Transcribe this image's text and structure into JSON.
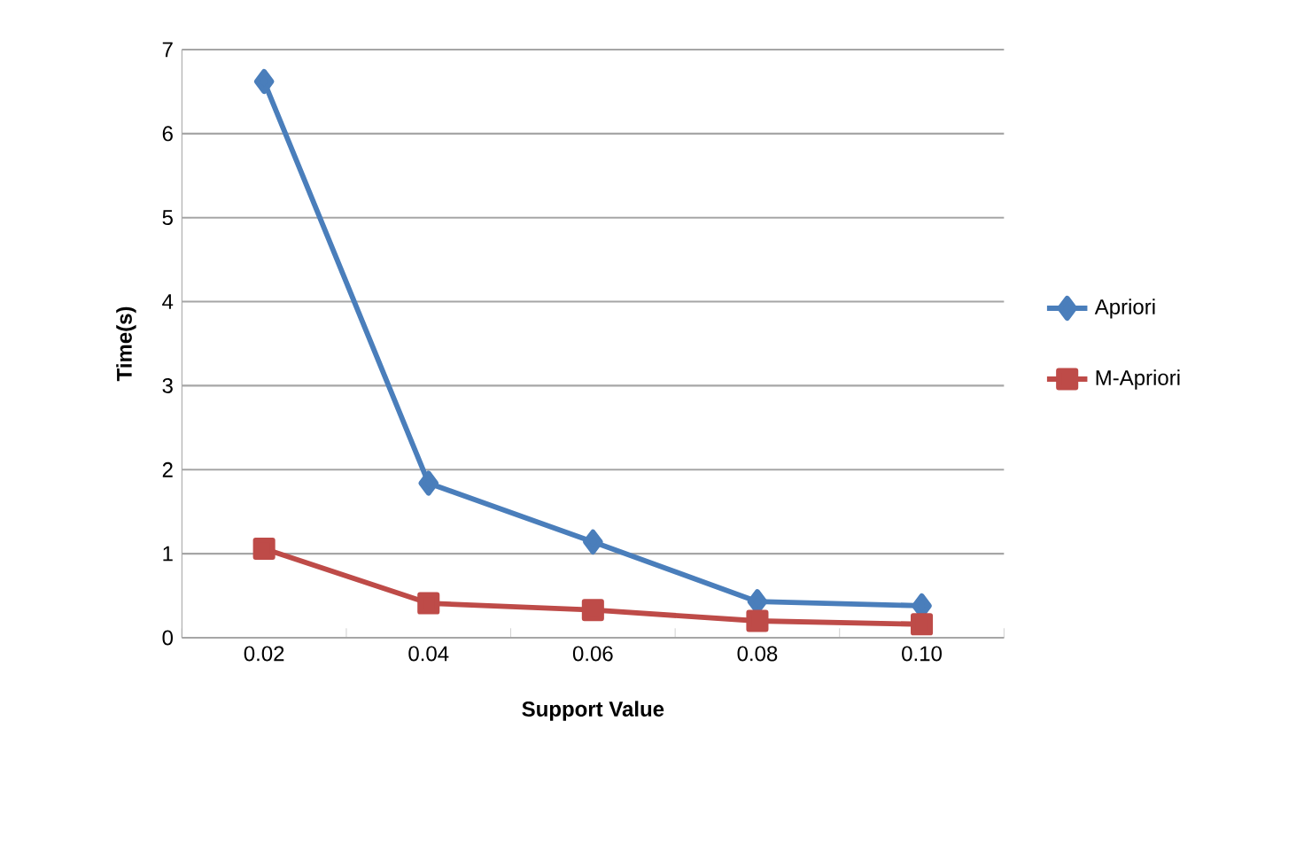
{
  "chart_data": {
    "type": "line",
    "xlabel": "Support Value",
    "ylabel": "Time(s)",
    "categories": [
      "0.02",
      "0.04",
      "0.06",
      "0.08",
      "0.10"
    ],
    "series": [
      {
        "name": "Apriori",
        "color": "#4a7ebb",
        "marker": "diamond",
        "values": [
          6.62,
          1.84,
          1.14,
          0.43,
          0.38
        ]
      },
      {
        "name": "M-Apriori",
        "color": "#be4b48",
        "marker": "square",
        "values": [
          1.06,
          0.41,
          0.33,
          0.2,
          0.16
        ]
      }
    ],
    "ylim": [
      0,
      7
    ],
    "yticks": [
      0,
      1,
      2,
      3,
      4,
      5,
      6,
      7
    ],
    "grid": "y",
    "legend": "right"
  }
}
